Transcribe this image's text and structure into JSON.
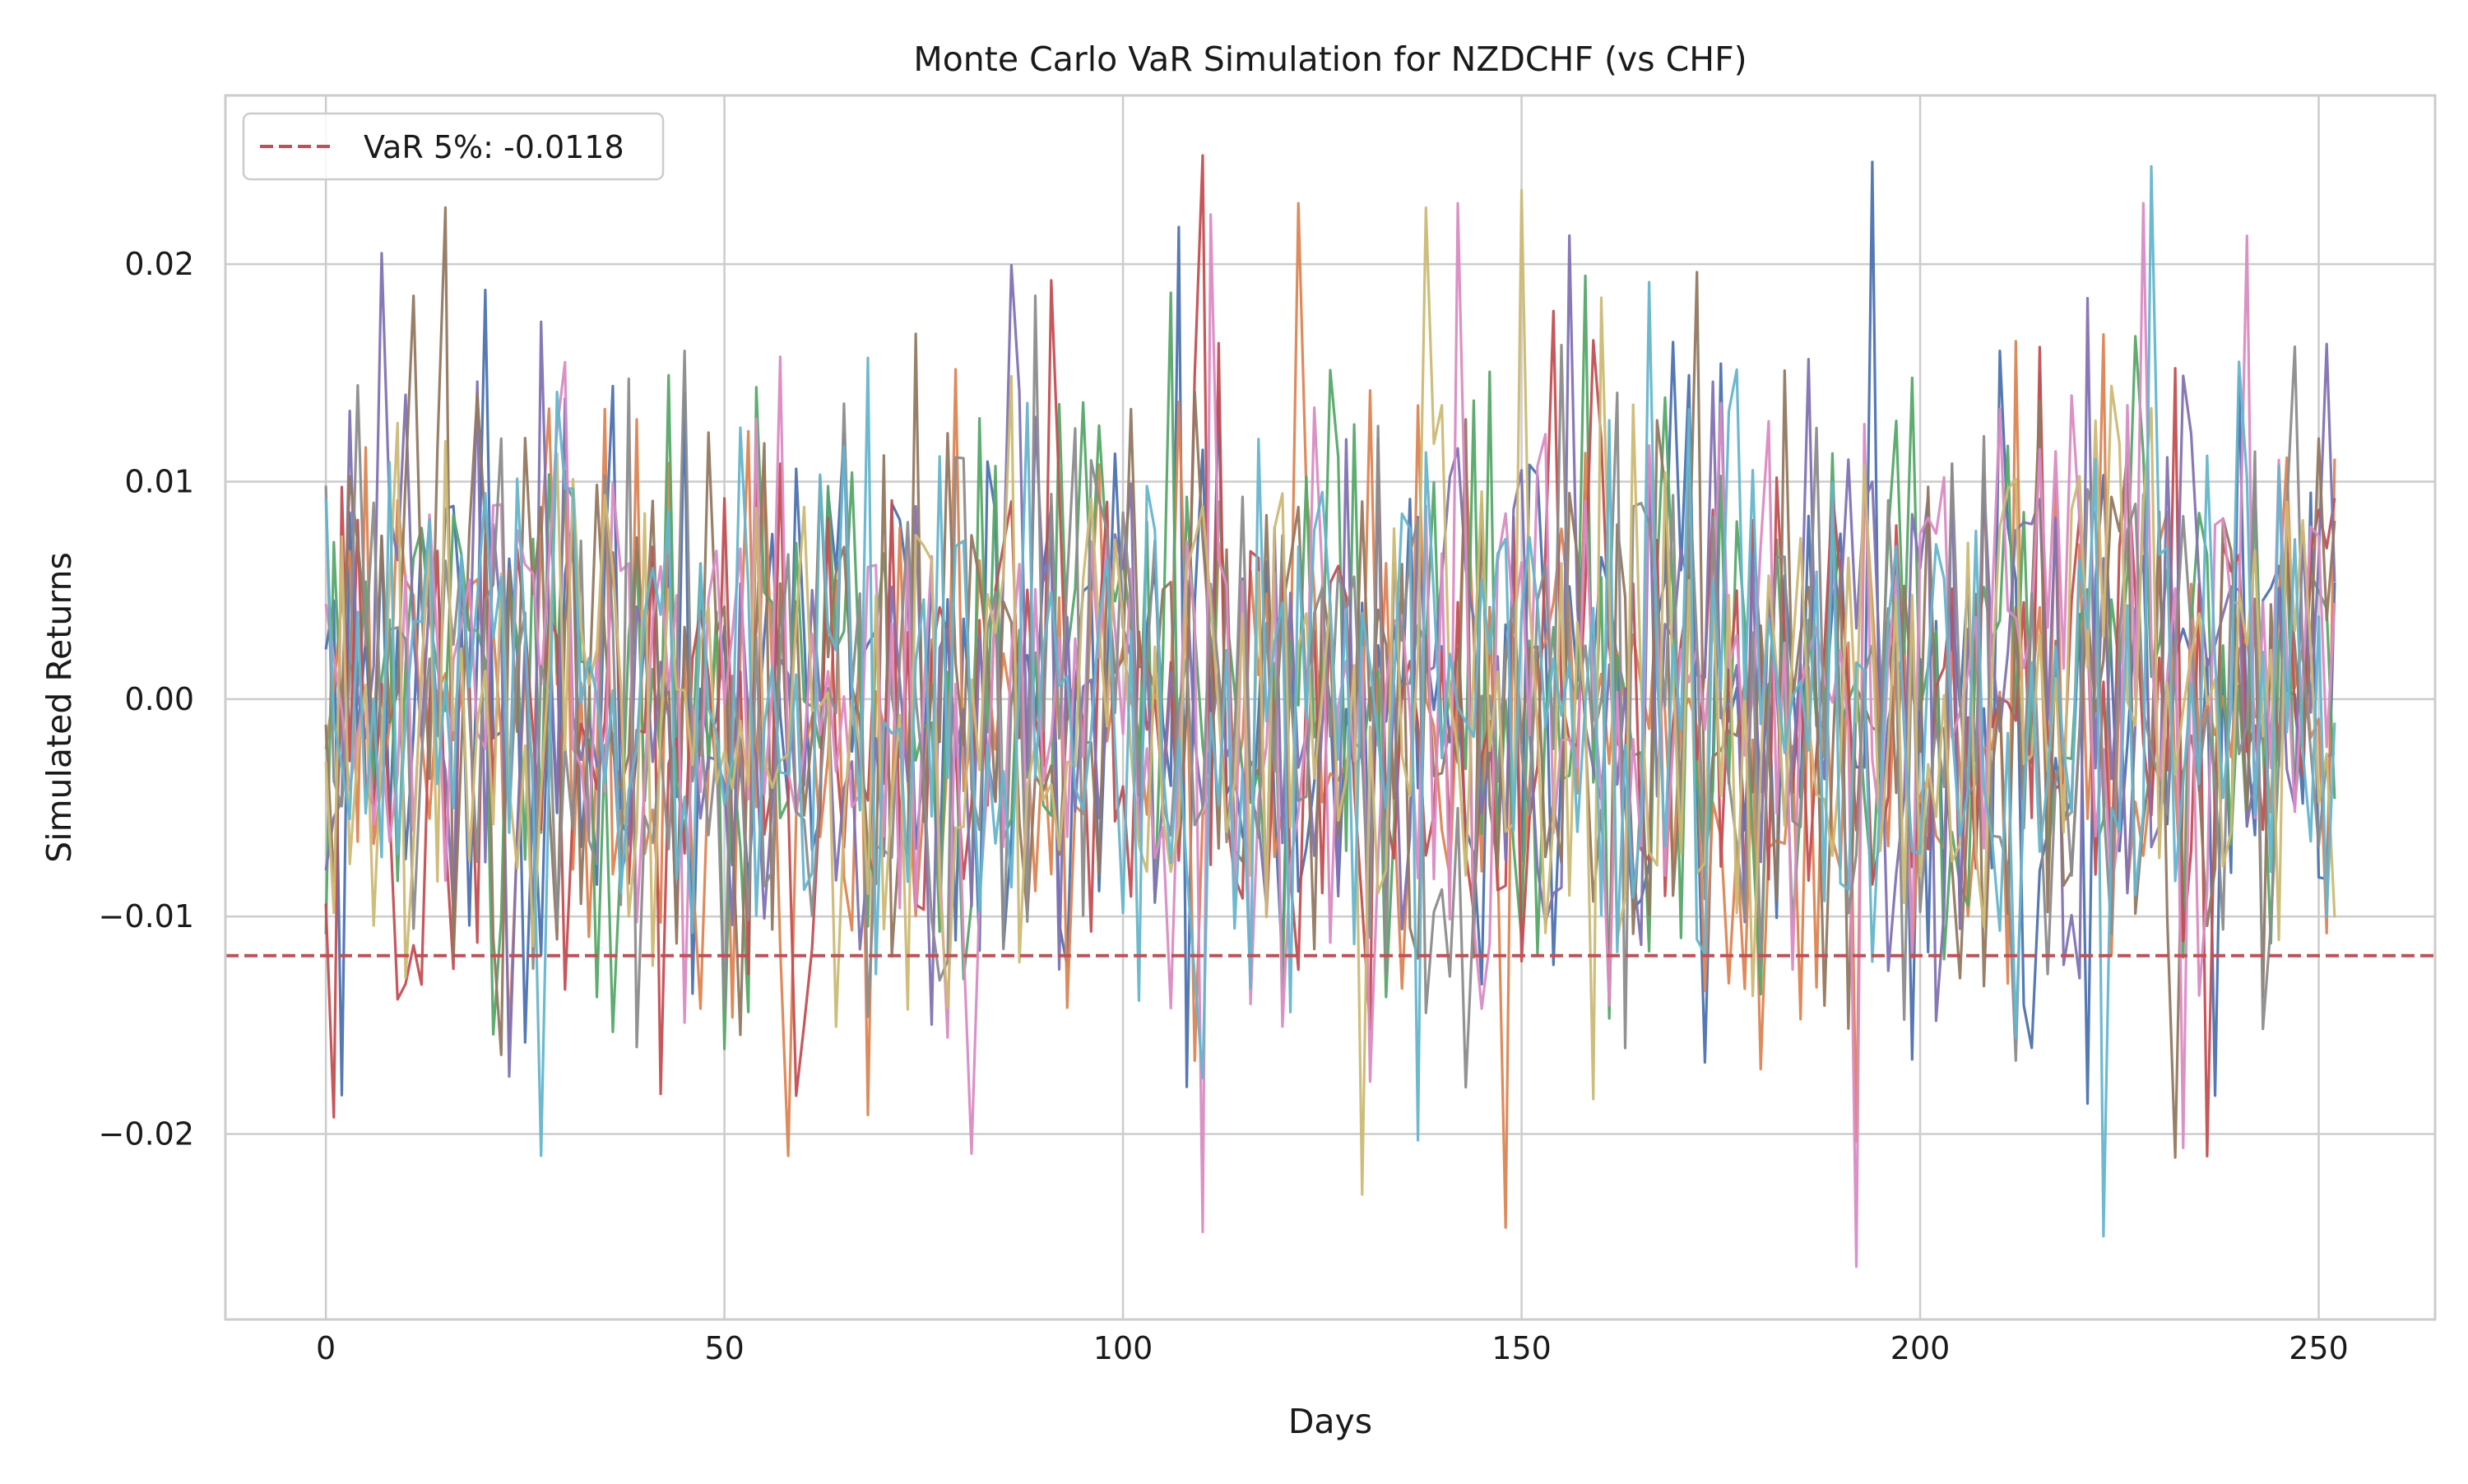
{
  "chart_data": {
    "type": "line",
    "title": "Monte Carlo VaR Simulation for NZDCHF (vs CHF)",
    "xlabel": "Days",
    "ylabel": "Simulated Returns",
    "xlim": [
      -12.6,
      264.6
    ],
    "ylim": [
      -0.02853,
      0.02776
    ],
    "x_ticks": [
      0,
      50,
      100,
      150,
      200,
      250
    ],
    "x_tick_labels": [
      "0",
      "50",
      "100",
      "150",
      "200",
      "250"
    ],
    "y_ticks": [
      -0.02,
      -0.01,
      0.0,
      0.01,
      0.02
    ],
    "y_tick_labels": [
      "−0.02",
      "−0.01",
      "0.00",
      "0.01",
      "0.02"
    ],
    "grid": true,
    "legend_position": "top-left",
    "days": 253,
    "var_line": {
      "label": "VaR 5%: -0.0118",
      "value": -0.0118,
      "color": "#c44e52",
      "style": "dashed"
    },
    "series_colors": [
      "#4c72b0",
      "#dd8452",
      "#55a868",
      "#c44e52",
      "#8172b3",
      "#937860",
      "#da8bc3",
      "#8c8c8c",
      "#ccb974",
      "#64b5cd"
    ],
    "series_stats": {
      "count": 10,
      "mean": 0.0,
      "std": 0.0072
    },
    "sample_points": [
      {
        "series": 0,
        "day": 194,
        "value": 0.0247
      },
      {
        "series": 1,
        "day": 58,
        "value": -0.021
      },
      {
        "series": 1,
        "day": 148,
        "value": -0.0243
      },
      {
        "series": 3,
        "day": 110,
        "value": 0.025
      },
      {
        "series": 5,
        "day": 15,
        "value": 0.0226
      },
      {
        "series": 6,
        "day": 110,
        "value": -0.0245
      },
      {
        "series": 6,
        "day": 192,
        "value": -0.0261
      },
      {
        "series": 8,
        "day": 150,
        "value": 0.0234
      },
      {
        "series": 9,
        "day": 27,
        "value": -0.021
      },
      {
        "series": 9,
        "day": 223,
        "value": -0.0247
      },
      {
        "series": 9,
        "day": 229,
        "value": 0.0245
      }
    ]
  }
}
